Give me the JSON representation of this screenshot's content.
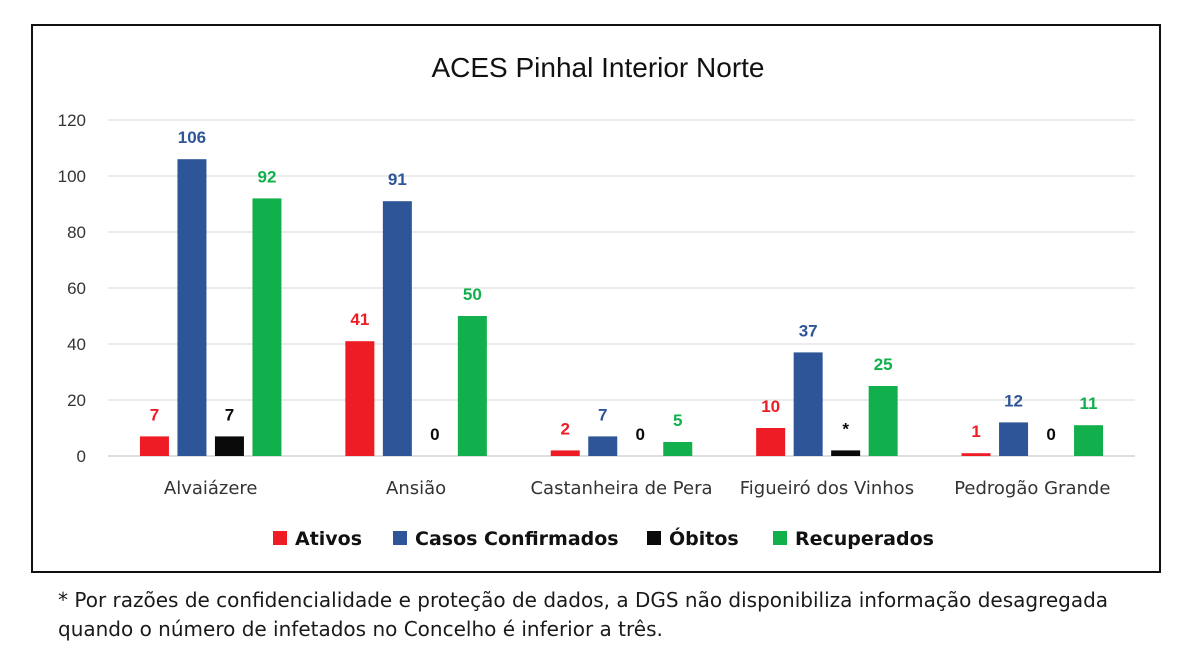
{
  "chart_data": {
    "type": "bar",
    "title": "ACES Pinhal Interior Norte",
    "categories": [
      "Alvaiázere",
      "Ansião",
      "Castanheira de Pera",
      "Figueiró dos Vinhos",
      "Pedrogão Grande"
    ],
    "series": [
      {
        "name": "Ativos",
        "color": "#ee1c25",
        "values": [
          7,
          41,
          2,
          10,
          1
        ],
        "labels": [
          "7",
          "41",
          "2",
          "10",
          "1"
        ]
      },
      {
        "name": "Casos Confirmados",
        "color": "#2e5597",
        "values": [
          106,
          91,
          7,
          37,
          12
        ],
        "labels": [
          "106",
          "91",
          "7",
          "37",
          "12"
        ]
      },
      {
        "name": "Óbitos",
        "color": "#0a0a0a",
        "values": [
          7,
          0,
          0,
          2,
          0
        ],
        "labels": [
          "7",
          "0",
          "0",
          "*",
          "0"
        ]
      },
      {
        "name": "Recuperados",
        "color": "#12b04c",
        "values": [
          92,
          50,
          5,
          25,
          11
        ],
        "labels": [
          "92",
          "50",
          "5",
          "25",
          "11"
        ]
      }
    ],
    "y_ticks": [
      "0",
      "20",
      "40",
      "60",
      "80",
      "100",
      "120"
    ],
    "ylim": [
      0,
      120
    ],
    "grid": true,
    "legend_position": "bottom"
  },
  "footnote": {
    "line1": "* Por razões de confidencialidade e proteção de dados, a DGS não disponibiliza informação desagregada",
    "line2": "quando o número de infetados no Concelho é inferior a três."
  }
}
